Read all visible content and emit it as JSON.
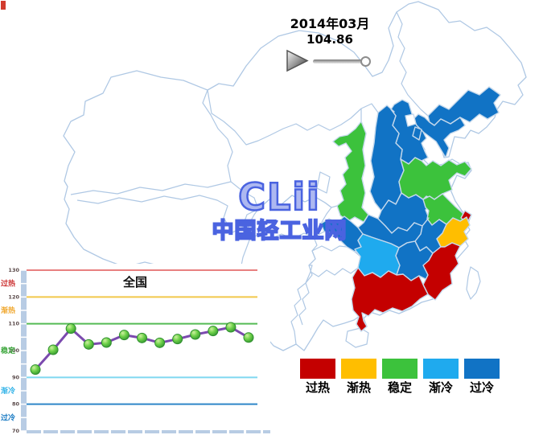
{
  "header": {
    "period": "2014年03月",
    "value": "104.86"
  },
  "controls": {
    "play": "play-triangle",
    "slider_position_pct": 100
  },
  "watermark": {
    "logo_text": "CLii",
    "site_text": "中国轻工业网",
    "color": "#4A63E0"
  },
  "legend": {
    "items": [
      {
        "label": "过热",
        "color": "#C40000"
      },
      {
        "label": "渐热",
        "color": "#FFBE00"
      },
      {
        "label": "稳定",
        "color": "#3CC23C"
      },
      {
        "label": "渐冷",
        "color": "#1FAAEE"
      },
      {
        "label": "过冷",
        "color": "#1173C5"
      }
    ]
  },
  "map": {
    "border_color": "#AFC8E4",
    "no_data_fill": "#FFFFFF",
    "status_colors": {
      "过热": "#C40000",
      "渐热": "#FFBE00",
      "稳定": "#3CC23C",
      "渐冷": "#1FAAEE",
      "过冷": "#1173C5"
    },
    "regions": [
      {
        "id": "jilin",
        "status": "过冷"
      },
      {
        "id": "liaoning",
        "status": "过冷"
      },
      {
        "id": "hebei",
        "status": "过冷"
      },
      {
        "id": "tianjin",
        "status": "过冷"
      },
      {
        "id": "shanxi",
        "status": "过冷"
      },
      {
        "id": "henan",
        "status": "过冷"
      },
      {
        "id": "anhui",
        "status": "过冷"
      },
      {
        "id": "hubei",
        "status": "过冷"
      },
      {
        "id": "chongqing",
        "status": "过冷"
      },
      {
        "id": "jiangxi",
        "status": "过冷"
      },
      {
        "id": "shaanxi",
        "status": "稳定"
      },
      {
        "id": "shandong",
        "status": "稳定"
      },
      {
        "id": "jiangsu",
        "status": "稳定"
      },
      {
        "id": "shanghai",
        "status": "过热"
      },
      {
        "id": "zhejiang",
        "status": "渐热"
      },
      {
        "id": "hunan",
        "status": "渐冷"
      },
      {
        "id": "fujian",
        "status": "过热"
      },
      {
        "id": "guangdong",
        "status": "过热"
      }
    ]
  },
  "chart_data": {
    "type": "line",
    "title": "全国",
    "values": [
      92.9,
      100.3,
      108.2,
      102.3,
      103.0,
      105.8,
      104.7,
      102.9,
      104.3,
      106.0,
      107.3,
      108.7,
      104.86
    ],
    "ylim": [
      70,
      130
    ],
    "yticks": [
      130,
      120,
      110,
      100,
      90,
      80,
      70
    ],
    "zones": [
      {
        "label": "过热",
        "at": 125,
        "color": "#CC3333"
      },
      {
        "label": "渐热",
        "at": 115,
        "color": "#F0A830"
      },
      {
        "label": "稳定",
        "at": 100,
        "color": "#3FA83F"
      },
      {
        "label": "渐冷",
        "at": 85,
        "color": "#35B4E8"
      },
      {
        "label": "过冷",
        "at": 75,
        "color": "#1C7CC4"
      }
    ],
    "gridlines": [
      {
        "y": 130,
        "color": "#E88080"
      },
      {
        "y": 120,
        "color": "#F2C84B"
      },
      {
        "y": 110,
        "color": "#55BB55"
      },
      {
        "y": 90,
        "color": "#7FD8F0"
      },
      {
        "y": 80,
        "color": "#2E86C8"
      }
    ],
    "line_color": "#7B4AAE",
    "marker_color": "#3FAF3F",
    "grid": true,
    "legend_position": "none"
  }
}
